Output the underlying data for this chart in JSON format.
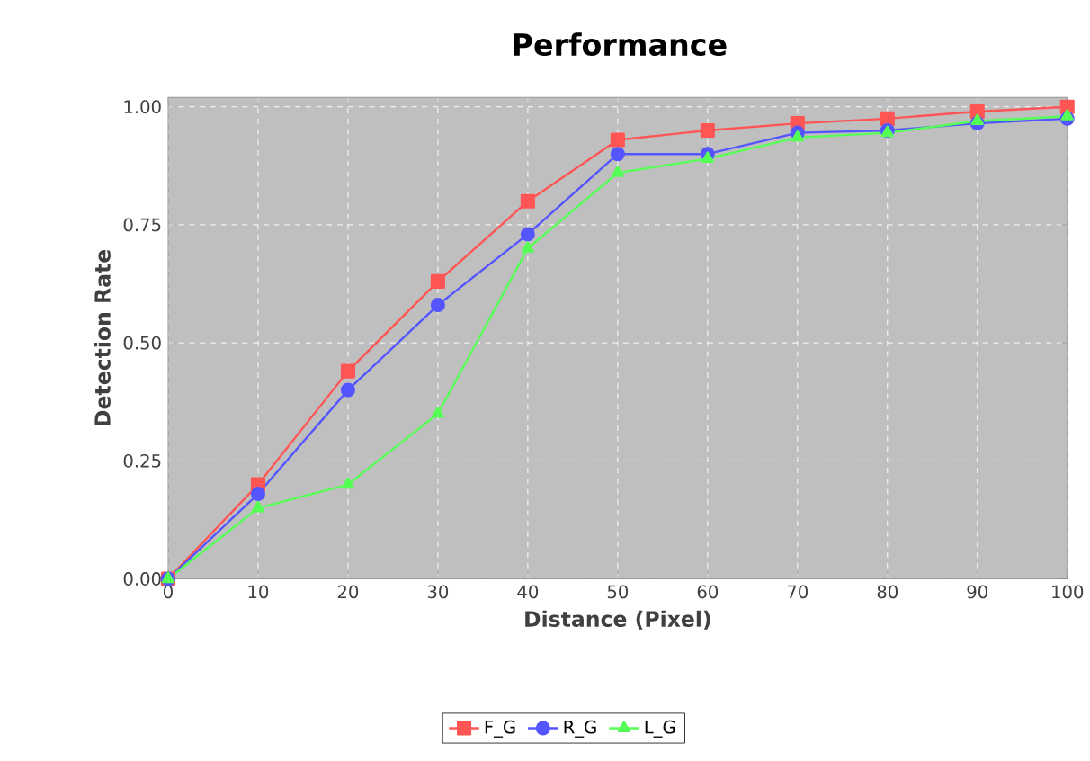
{
  "chart_data": {
    "type": "line",
    "title": "Performance",
    "xlabel": "Distance (Pixel)",
    "ylabel": "Detection Rate",
    "x": [
      0,
      10,
      20,
      30,
      40,
      50,
      60,
      70,
      80,
      90,
      100
    ],
    "series": [
      {
        "name": "F_G",
        "color": "#ff5555",
        "marker": "square",
        "values": [
          0,
          0.2,
          0.44,
          0.63,
          0.8,
          0.93,
          0.95,
          0.965,
          0.975,
          0.99,
          1.0
        ]
      },
      {
        "name": "R_G",
        "color": "#5555ff",
        "marker": "circle",
        "values": [
          0,
          0.18,
          0.4,
          0.58,
          0.73,
          0.9,
          0.9,
          0.945,
          0.95,
          0.965,
          0.975
        ]
      },
      {
        "name": "L_G",
        "color": "#55ff55",
        "marker": "triangle",
        "values": [
          0,
          0.15,
          0.2,
          0.35,
          0.7,
          0.86,
          0.89,
          0.935,
          0.945,
          0.97,
          0.98
        ]
      }
    ],
    "xlim": [
      0,
      100
    ],
    "xticks": [
      0,
      10,
      20,
      30,
      40,
      50,
      60,
      70,
      80,
      90,
      100
    ],
    "ylim": [
      0,
      1.02
    ],
    "yticks": [
      {
        "value": 0,
        "label": "0.00"
      },
      {
        "value": 0.25,
        "label": "0.25"
      },
      {
        "value": 0.5,
        "label": "0.50"
      },
      {
        "value": 0.75,
        "label": "0.75"
      },
      {
        "value": 1,
        "label": "1.00"
      }
    ],
    "grid": true,
    "legend": "bottom",
    "line_style": "solid"
  }
}
